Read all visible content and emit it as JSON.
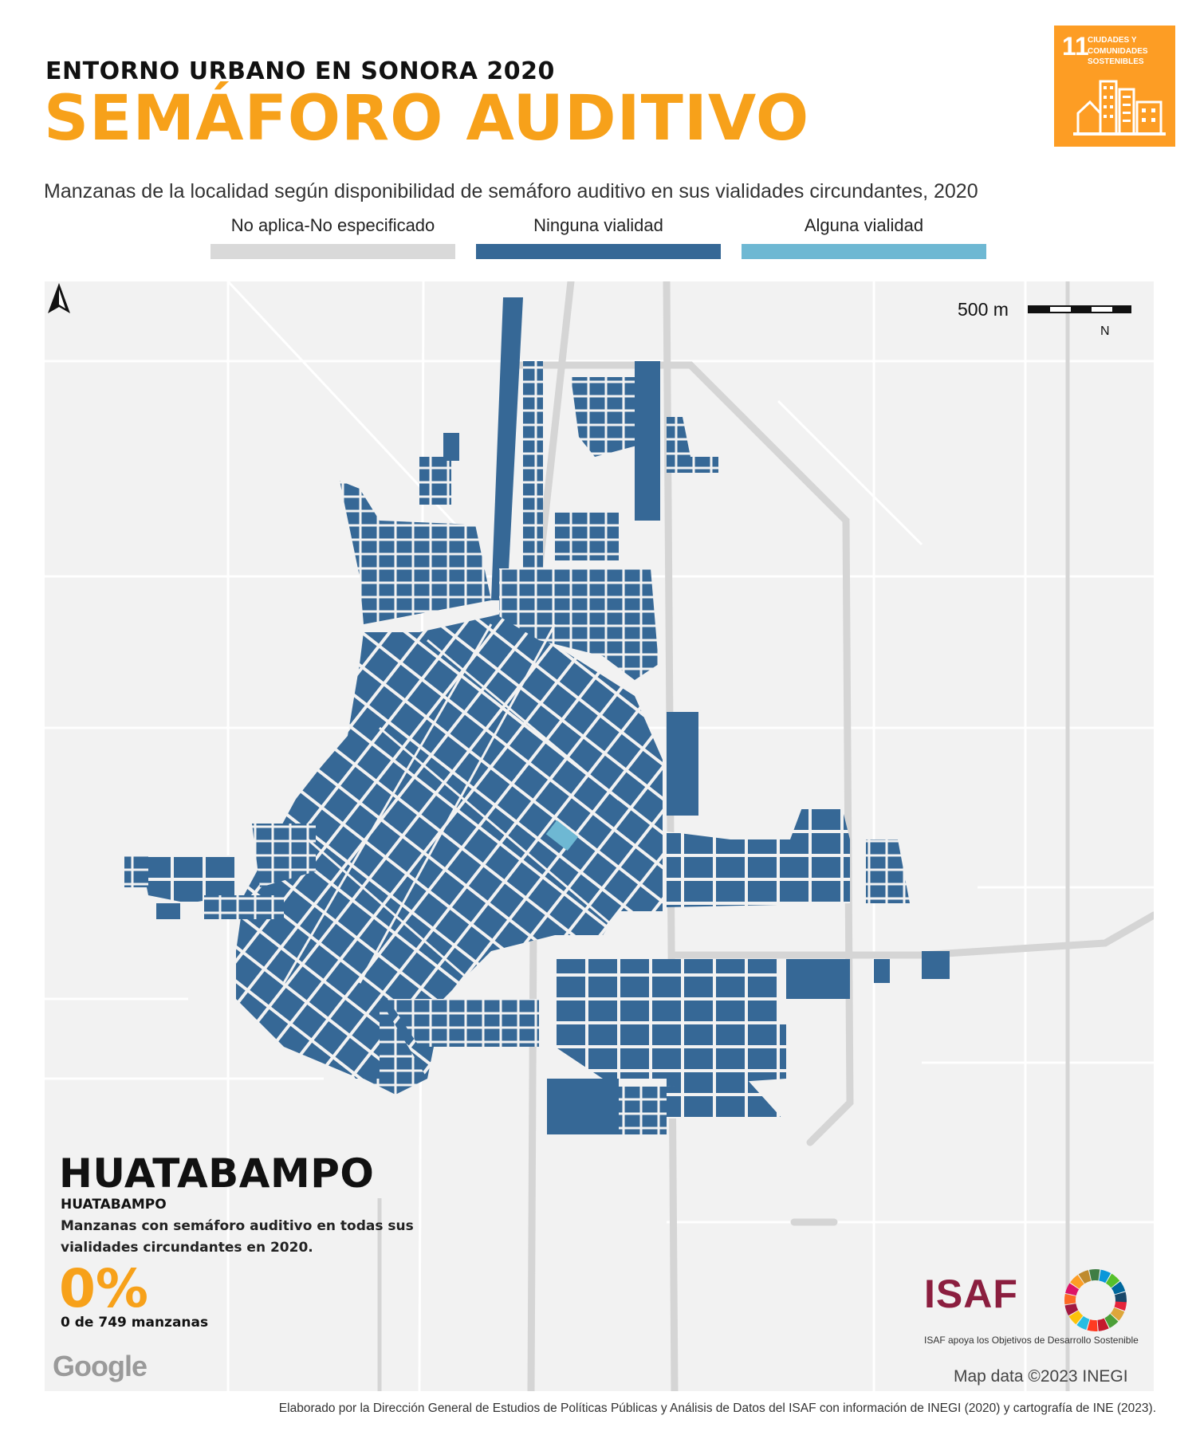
{
  "header": {
    "subtitle": "ENTORNO URBANO EN SONORA 2020",
    "title": "SEMÁFORO AUDITIVO"
  },
  "sdg_badge": {
    "number": "11",
    "text": "CIUDADES Y COMUNIDADES SOSTENIBLES",
    "color": "#FD9D24"
  },
  "description": "Manzanas de la localidad según disponibilidad de semáforo auditivo en sus vialidades circundantes, 2020",
  "legend": [
    {
      "label": "No aplica-No especificado",
      "color": "#d9d9d9"
    },
    {
      "label": "Ninguna vialidad",
      "color": "#366896"
    },
    {
      "label": "Alguna vialidad",
      "color": "#6EB8D3"
    }
  ],
  "map": {
    "scale_label": "500 m",
    "north_label": "N",
    "attribution": "Map data ©2023 INEGI",
    "google": "Google"
  },
  "locality": {
    "name": "HUATABAMPO",
    "municipality": "HUATABAMPO",
    "description": "Manzanas con semáforo auditivo en todas sus vialidades circundantes en 2020.",
    "percent": "0%",
    "count": "0 de 749 manzanas"
  },
  "isaf": {
    "logo_text": "ISAF",
    "caption": "ISAF apoya los Objetivos de Desarrollo Sostenible"
  },
  "footer": "Elaborado por la Dirección General de Estudios de Políticas Públicas y Análisis de Datos del ISAF con información de INEGI (2020) y cartografía de INE (2023)."
}
